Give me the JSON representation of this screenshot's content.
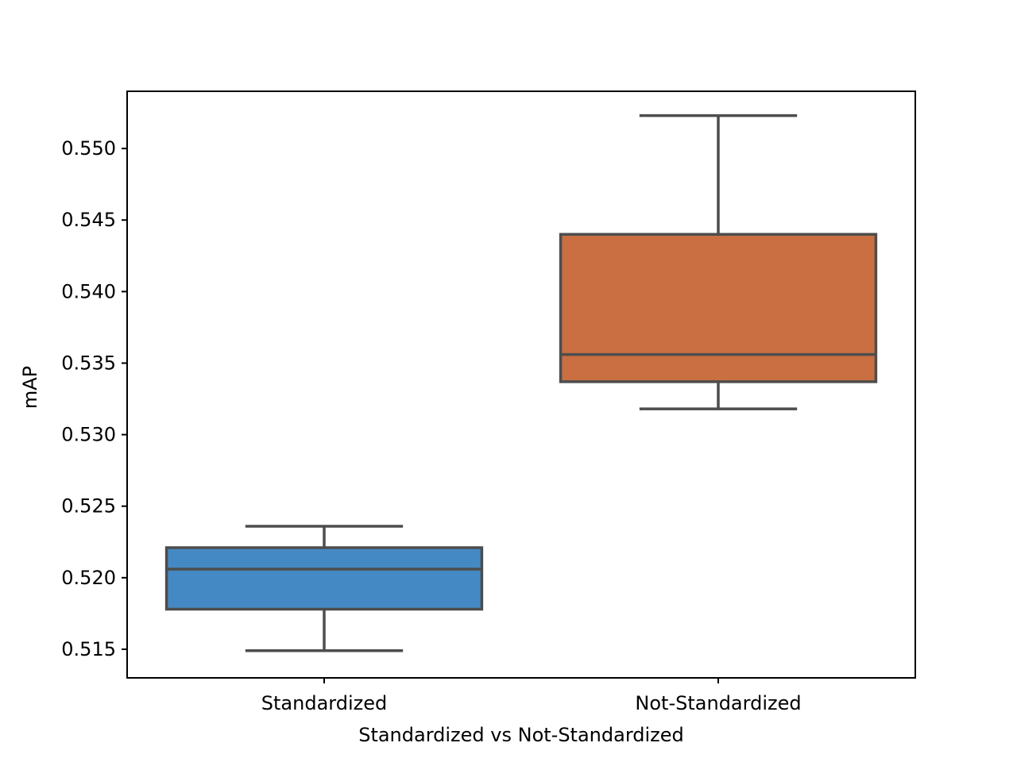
{
  "chart_data": {
    "type": "box",
    "title": "",
    "xlabel": "Standardized vs Not-Standardized",
    "ylabel": "mAP",
    "ylim": [
      0.513,
      0.554
    ],
    "yticks": [
      0.515,
      0.52,
      0.525,
      0.53,
      0.535,
      0.54,
      0.545,
      0.55
    ],
    "ytick_labels": [
      "0.515",
      "0.520",
      "0.525",
      "0.530",
      "0.535",
      "0.540",
      "0.545",
      "0.550"
    ],
    "categories": [
      "Standardized",
      "Not-Standardized"
    ],
    "boxes": [
      {
        "category": "Standardized",
        "whisker_low": 0.5149,
        "q1": 0.5178,
        "median": 0.5206,
        "q3": 0.5221,
        "whisker_high": 0.5236,
        "color": "#4589c4"
      },
      {
        "category": "Not-Standardized",
        "whisker_low": 0.5318,
        "q1": 0.5337,
        "median": 0.5356,
        "q3": 0.544,
        "whisker_high": 0.5523,
        "color": "#c96f42"
      }
    ],
    "grid": false,
    "legend": "none",
    "line_color": "#4d4d4d"
  }
}
